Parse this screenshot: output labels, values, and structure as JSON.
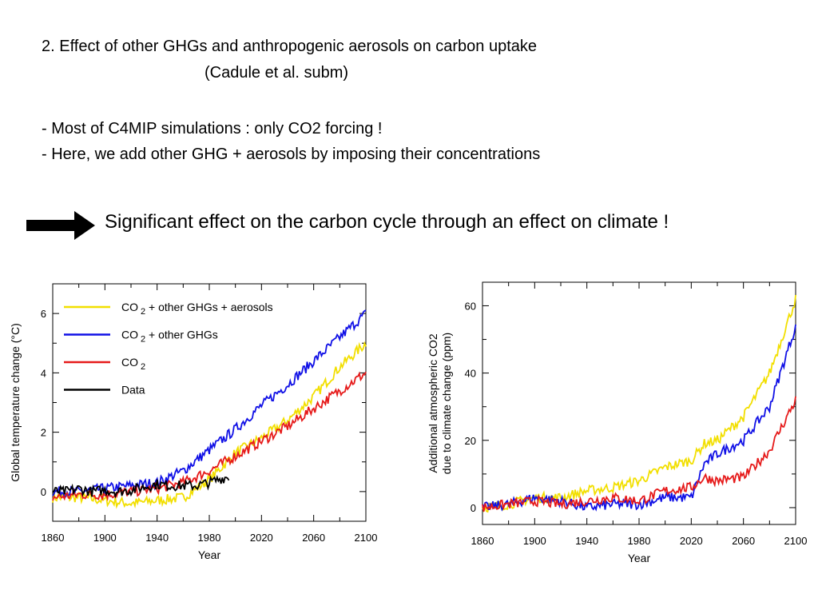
{
  "slide": {
    "title_line1": "2. Effect of other GHGs and anthropogenic aerosols on carbon uptake",
    "title_line2": "(Cadule et al. subm)",
    "bullet1": "- Most of C4MIP simulations : only CO2 forcing !",
    "bullet2": "- Here, we add other GHG + aerosols by imposing their concentrations",
    "conclusion": "Significant effect on the carbon cycle through an effect on climate !"
  },
  "colors": {
    "yellow": "#f2df00",
    "blue": "#1010e6",
    "red": "#e61a1a",
    "black": "#000000"
  },
  "chart_data": [
    {
      "type": "line",
      "xlabel": "Year",
      "ylabel": "Global temperature change (°C)",
      "xlim": [
        1860,
        2100
      ],
      "ylim": [
        -1,
        7
      ],
      "xticks": [
        1860,
        1900,
        1940,
        1980,
        2020,
        2060,
        2100
      ],
      "yticks": [
        0,
        2,
        4,
        6
      ],
      "legend_position": "top-left",
      "series": [
        {
          "name": "CO2 + other GHGs + aerosols",
          "label_main": "CO",
          "label_sub": "2",
          "label_rest": " + other GHGs + aerosols",
          "color": "#f2df00",
          "x": [
            1860,
            1880,
            1900,
            1920,
            1940,
            1960,
            1980,
            2000,
            2020,
            2040,
            2060,
            2080,
            2100
          ],
          "y": [
            -0.2,
            -0.2,
            -0.3,
            -0.4,
            -0.3,
            -0.2,
            0.4,
            1.3,
            1.8,
            2.4,
            3.2,
            4.2,
            5.0
          ]
        },
        {
          "name": "CO2 + other GHGs",
          "label_main": "CO",
          "label_sub": "2",
          "label_rest": " + other GHGs",
          "color": "#1010e6",
          "x": [
            1860,
            1880,
            1900,
            1920,
            1940,
            1960,
            1980,
            2000,
            2020,
            2040,
            2060,
            2080,
            2100
          ],
          "y": [
            0.0,
            0.0,
            0.1,
            0.2,
            0.3,
            0.7,
            1.4,
            2.1,
            2.9,
            3.6,
            4.4,
            5.2,
            6.0
          ]
        },
        {
          "name": "CO2",
          "label_main": "CO",
          "label_sub": "2",
          "label_rest": "",
          "color": "#e61a1a",
          "x": [
            1860,
            1880,
            1900,
            1920,
            1940,
            1960,
            1980,
            2000,
            2020,
            2040,
            2060,
            2080,
            2100
          ],
          "y": [
            -0.2,
            -0.1,
            -0.1,
            0.0,
            0.1,
            0.3,
            0.7,
            1.2,
            1.7,
            2.2,
            2.8,
            3.4,
            4.0
          ]
        },
        {
          "name": "Data",
          "label_main": "Data",
          "label_sub": "",
          "label_rest": "",
          "color": "#000000",
          "x": [
            1860,
            1870,
            1880,
            1890,
            1900,
            1910,
            1920,
            1930,
            1940,
            1950,
            1960,
            1970,
            1980,
            1990,
            1995
          ],
          "y": [
            0.0,
            0.0,
            0.1,
            0.0,
            0.05,
            0.0,
            0.05,
            0.15,
            0.25,
            0.2,
            0.2,
            0.2,
            0.3,
            0.45,
            0.5
          ]
        }
      ]
    },
    {
      "type": "line",
      "xlabel": "Year",
      "ylabel_line1": "Additional atmospheric CO2",
      "ylabel_line2": "due to climate change (ppm)",
      "xlim": [
        1860,
        2100
      ],
      "ylim": [
        -5,
        67
      ],
      "xticks": [
        1860,
        1900,
        1940,
        1980,
        2020,
        2060,
        2100
      ],
      "yticks": [
        0,
        20,
        40,
        60
      ],
      "series": [
        {
          "color": "#f2df00",
          "x": [
            1860,
            1880,
            1900,
            1920,
            1940,
            1960,
            1980,
            2000,
            2020,
            2030,
            2040,
            2060,
            2080,
            2100
          ],
          "y": [
            0,
            1,
            3,
            3,
            5,
            6,
            8,
            12,
            14,
            19,
            20,
            27,
            40,
            62
          ]
        },
        {
          "color": "#1010e6",
          "x": [
            1860,
            1880,
            1900,
            1920,
            1940,
            1960,
            1980,
            2000,
            2020,
            2030,
            2040,
            2060,
            2080,
            2100
          ],
          "y": [
            0,
            1,
            3,
            2,
            0,
            1,
            1,
            3,
            3,
            13,
            16,
            20,
            30,
            54
          ]
        },
        {
          "color": "#e61a1a",
          "x": [
            1860,
            1880,
            1900,
            1920,
            1940,
            1960,
            1980,
            2000,
            2020,
            2030,
            2040,
            2060,
            2080,
            2100
          ],
          "y": [
            0,
            1,
            2,
            1,
            2,
            3,
            2,
            5,
            6,
            9,
            8,
            9,
            17,
            32
          ]
        }
      ]
    }
  ]
}
